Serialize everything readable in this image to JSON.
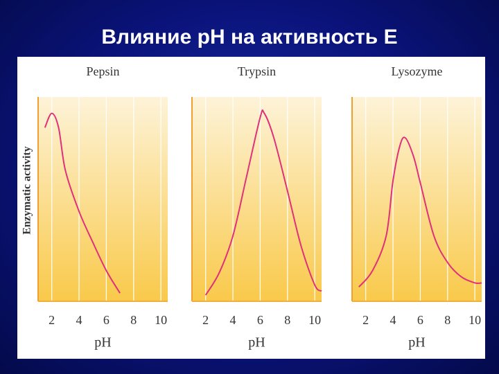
{
  "title": "Влияние pH на активность Е",
  "y_label": "Enzymatic activity",
  "chart_data": [
    {
      "type": "line",
      "title": "Pepsin",
      "x_label": "pH",
      "xlim": [
        1,
        10.5
      ],
      "ylim": [
        0,
        1
      ],
      "xticks": [
        2,
        4,
        6,
        8,
        10
      ],
      "grid": true,
      "x": [
        1.5,
        2,
        2.5,
        3,
        4,
        5,
        6,
        7
      ],
      "series": [
        {
          "color": "#e0307a",
          "values": [
            0.85,
            0.92,
            0.85,
            0.64,
            0.44,
            0.29,
            0.15,
            0.04
          ]
        }
      ]
    },
    {
      "type": "line",
      "title": "Trypsin",
      "x_label": "pH",
      "xlim": [
        1,
        10.5
      ],
      "ylim": [
        0,
        1
      ],
      "xticks": [
        2,
        4,
        6,
        8,
        10
      ],
      "grid": true,
      "x": [
        2,
        3,
        4,
        5,
        6,
        6.3,
        7,
        8,
        9,
        10,
        10.5
      ],
      "series": [
        {
          "color": "#e0307a",
          "values": [
            0.03,
            0.14,
            0.32,
            0.61,
            0.9,
            0.92,
            0.8,
            0.54,
            0.27,
            0.08,
            0.05
          ]
        }
      ]
    },
    {
      "type": "line",
      "title": "Lysozyme",
      "x_label": "pH",
      "xlim": [
        1,
        10.5
      ],
      "ylim": [
        0,
        1
      ],
      "xticks": [
        2,
        4,
        6,
        8,
        10
      ],
      "grid": true,
      "x": [
        1.5,
        2.5,
        3.5,
        4,
        4.5,
        4.9,
        5.5,
        6,
        7,
        8,
        9,
        10,
        10.5
      ],
      "series": [
        {
          "color": "#e0307a",
          "values": [
            0.07,
            0.15,
            0.32,
            0.59,
            0.76,
            0.8,
            0.71,
            0.58,
            0.32,
            0.19,
            0.12,
            0.09,
            0.09
          ]
        }
      ]
    }
  ]
}
